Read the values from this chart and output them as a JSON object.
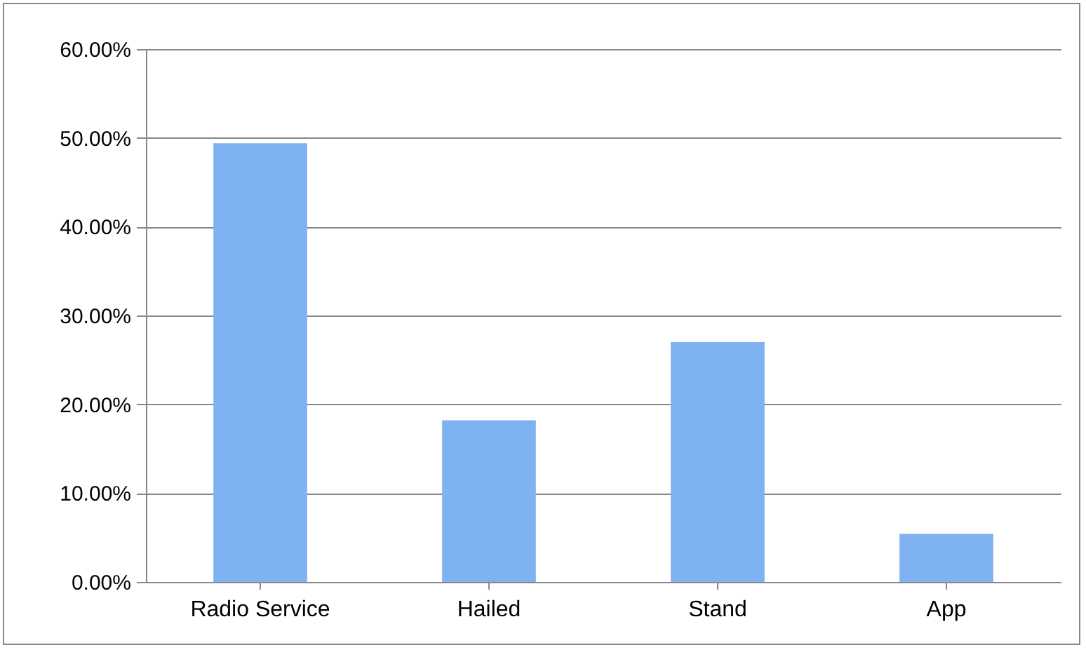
{
  "chart_data": {
    "type": "bar",
    "categories": [
      "Radio Service",
      "Hailed",
      "Stand",
      "App"
    ],
    "values": [
      49.4,
      18.2,
      27.0,
      5.4
    ],
    "color": "#7fb2f0",
    "ylim": [
      0,
      60
    ],
    "yticks": [
      {
        "value": 0,
        "label": "0.00%"
      },
      {
        "value": 10,
        "label": "10.00%"
      },
      {
        "value": 20,
        "label": "20.00%"
      },
      {
        "value": 30,
        "label": "30.00%"
      },
      {
        "value": 40,
        "label": "40.00%"
      },
      {
        "value": 50,
        "label": "50.00%"
      },
      {
        "value": 60,
        "label": "60.00%"
      }
    ],
    "grid": "y"
  }
}
